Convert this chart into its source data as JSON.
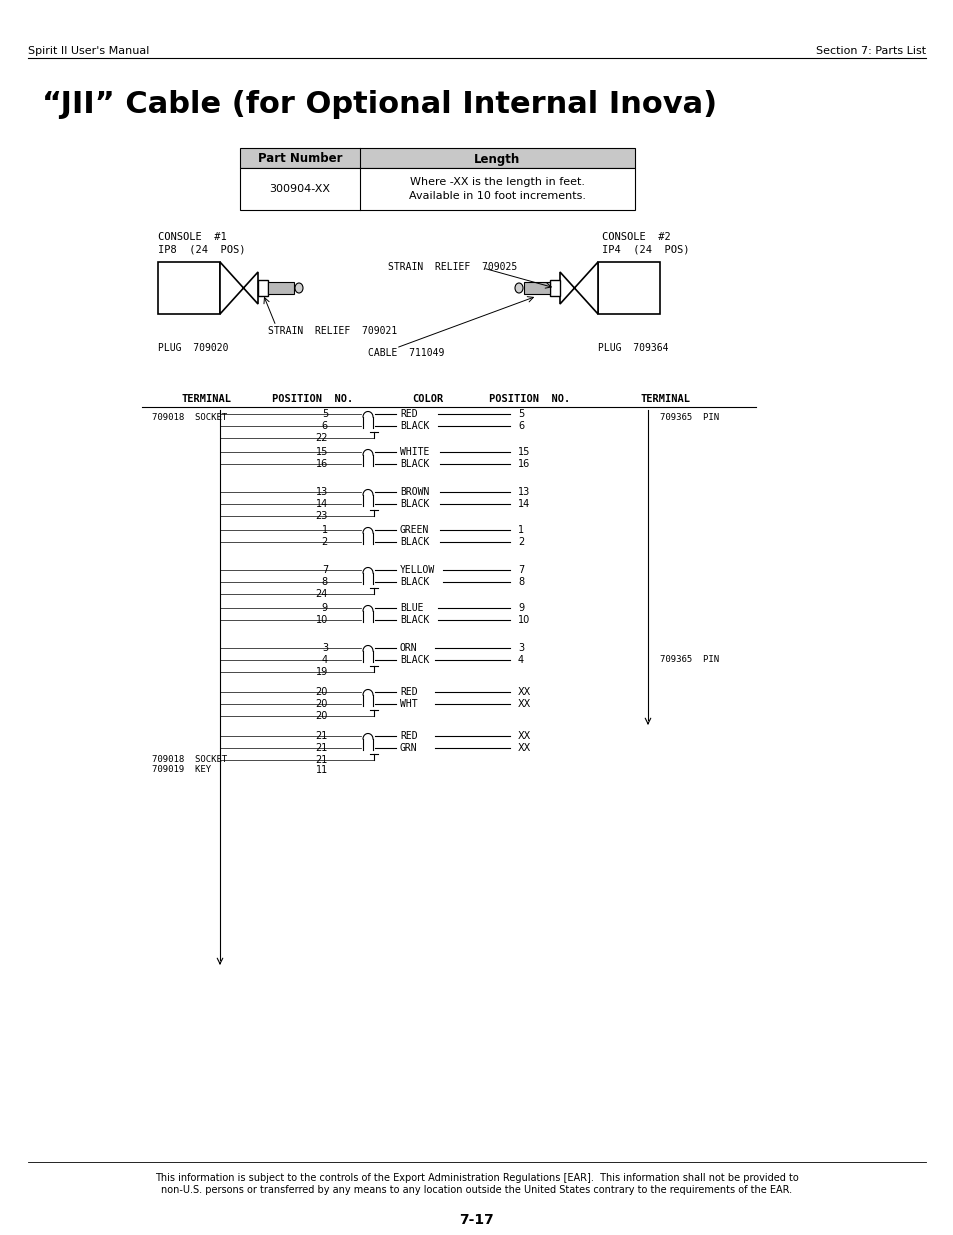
{
  "page_header_left": "Spirit II User's Manual",
  "page_header_right": "Section 7: Parts List",
  "title": "“JII” Cable (for Optional Internal Inova)",
  "table_header": [
    "Part Number",
    "Length"
  ],
  "part_number": "300904-XX",
  "length_line1": "Where -XX is the length in feet.",
  "length_line2": "Available in 10 foot increments.",
  "console1_label1": "CONSOLE  #1",
  "console1_label2": "IP8  (24  POS)",
  "console2_label1": "CONSOLE  #2",
  "console2_label2": "IP4  (24  POS)",
  "strain_relief1": "STRAIN  RELIEF  709021",
  "strain_relief2": "STRAIN  RELIEF  709025",
  "plug1": "PLUG  709020",
  "plug2": "PLUG  709364",
  "cable": "CABLE  711049",
  "wiring_col_headers": [
    "TERMINAL",
    "POSITION  NO.",
    "COLOR",
    "POSITION  NO.",
    "TERMINAL"
  ],
  "terminal_left1": "709018  SOCKET",
  "terminal_left2": "709018  SOCKET",
  "terminal_left3": "709019  KEY",
  "terminal_right1": "709365  PIN",
  "terminal_right2": "709365  PIN",
  "footer_text": "This information is subject to the controls of the Export Administration Regulations [EAR].  This information shall not be provided to\nnon-U.S. persons or transferred by any means to any location outside the United States contrary to the requirements of the EAR.",
  "page_number": "7-17",
  "bg": "#ffffff"
}
